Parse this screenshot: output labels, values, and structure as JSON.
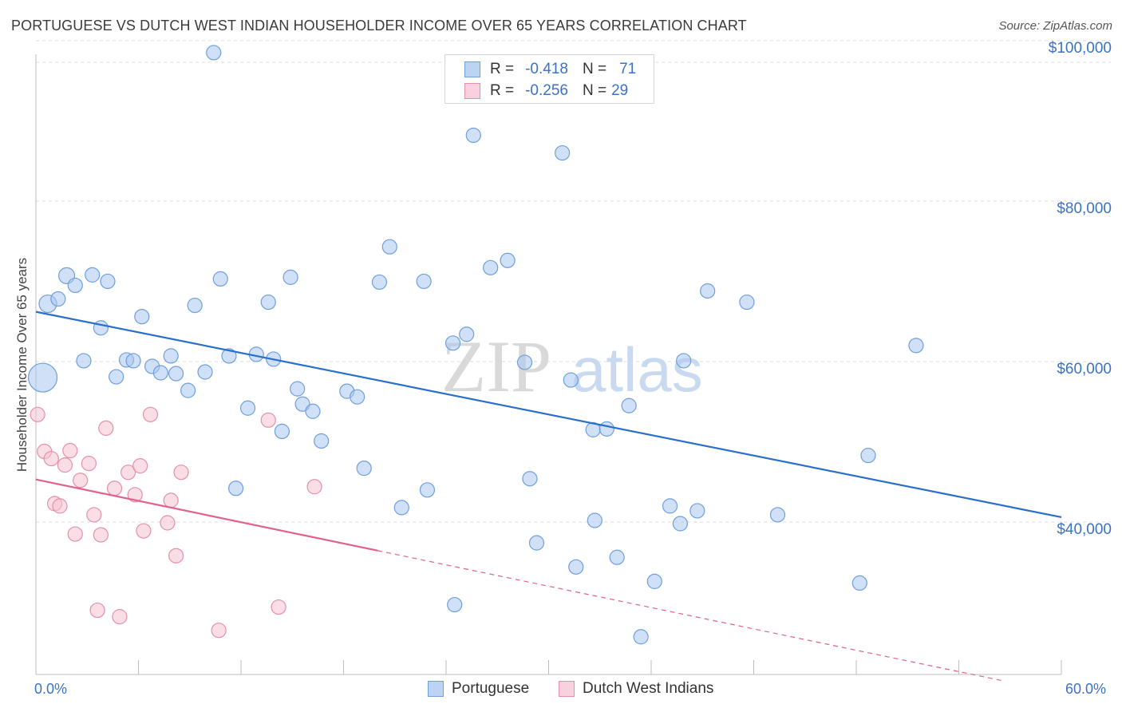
{
  "header": {
    "title": "PORTUGUESE VS DUTCH WEST INDIAN HOUSEHOLDER INCOME OVER 65 YEARS CORRELATION CHART",
    "source": "Source: ZipAtlas.com"
  },
  "watermark": {
    "zip": "ZIP",
    "atlas": "atlas"
  },
  "legend": {
    "portuguese": {
      "r_label": "R =",
      "r_value": "-0.418",
      "n_label": "N =",
      "n_value": "71"
    },
    "dutch": {
      "r_label": "R =",
      "r_value": "-0.256",
      "n_label": "N =",
      "n_value": "29"
    }
  },
  "colors": {
    "blue_fill": "#a9c6ef",
    "blue_stroke": "#6f9fdc",
    "blue_line": "#2a6fcb",
    "pink_fill": "#f6c3d2",
    "pink_stroke": "#e58fab",
    "pink_line": "#e0628c",
    "grid": "#dcdcdc",
    "axis_text": "#3a72c4"
  },
  "chart_data": {
    "type": "scatter",
    "title": "PORTUGUESE VS DUTCH WEST INDIAN HOUSEHOLDER INCOME OVER 65 YEARS CORRELATION CHART",
    "xlabel": "",
    "ylabel": "Householder Income Over 65 years",
    "xlim": [
      0,
      60
    ],
    "ylim": [
      21000,
      102000
    ],
    "x_tick_labels": [
      "0.0%",
      "60.0%"
    ],
    "y_ticks": [
      {
        "value": 40000,
        "label": "$40,000"
      },
      {
        "value": 60000,
        "label": "$60,000"
      },
      {
        "value": 80000,
        "label": "$80,000"
      },
      {
        "value": 100000,
        "label": "$100,000"
      }
    ],
    "series": [
      {
        "name": "Portuguese",
        "color": "#a9c6ef",
        "trend": {
          "x0": 0,
          "y0": 66200,
          "x1": 60,
          "y1": 40600,
          "solid_until": 60
        },
        "points": [
          [
            0.4,
            58000,
            18
          ],
          [
            0.7,
            67200,
            11
          ],
          [
            1.3,
            67800,
            9
          ],
          [
            1.8,
            70700,
            10
          ],
          [
            2.3,
            69500,
            9
          ],
          [
            2.8,
            60100,
            9
          ],
          [
            3.3,
            70800,
            9
          ],
          [
            3.8,
            64200,
            9
          ],
          [
            4.2,
            70000,
            9
          ],
          [
            4.7,
            58100,
            9
          ],
          [
            5.3,
            60200,
            9
          ],
          [
            5.7,
            60100,
            9
          ],
          [
            6.2,
            65600,
            9
          ],
          [
            6.8,
            59400,
            9
          ],
          [
            7.3,
            58600,
            9
          ],
          [
            7.9,
            60700,
            9
          ],
          [
            8.2,
            58500,
            9
          ],
          [
            8.9,
            56400,
            9
          ],
          [
            9.3,
            67000,
            9
          ],
          [
            9.9,
            58700,
            9
          ],
          [
            10.4,
            98500,
            9
          ],
          [
            10.8,
            70300,
            9
          ],
          [
            11.3,
            60700,
            9
          ],
          [
            11.7,
            44200,
            9
          ],
          [
            12.4,
            54200,
            9
          ],
          [
            12.9,
            60900,
            9
          ],
          [
            13.6,
            67400,
            9
          ],
          [
            13.9,
            60300,
            9
          ],
          [
            14.4,
            51300,
            9
          ],
          [
            14.9,
            70500,
            9
          ],
          [
            15.3,
            56600,
            9
          ],
          [
            15.6,
            54700,
            9
          ],
          [
            16.2,
            53800,
            9
          ],
          [
            16.7,
            50100,
            9
          ],
          [
            18.2,
            56300,
            9
          ],
          [
            18.8,
            55600,
            9
          ],
          [
            19.2,
            46700,
            9
          ],
          [
            20.1,
            69900,
            9
          ],
          [
            20.7,
            74300,
            9
          ],
          [
            21.4,
            41800,
            9
          ],
          [
            22.7,
            70000,
            9
          ],
          [
            22.9,
            44000,
            9
          ],
          [
            24.4,
            62300,
            9
          ],
          [
            24.5,
            29700,
            9
          ],
          [
            25.2,
            63400,
            9
          ],
          [
            25.6,
            88200,
            9
          ],
          [
            26.6,
            71700,
            9
          ],
          [
            27.6,
            72600,
            9
          ],
          [
            28.6,
            59900,
            9
          ],
          [
            28.9,
            45400,
            9
          ],
          [
            29.3,
            37400,
            9
          ],
          [
            30.8,
            86000,
            9
          ],
          [
            31.3,
            57700,
            9
          ],
          [
            31.6,
            34400,
            9
          ],
          [
            32.6,
            51500,
            9
          ],
          [
            32.7,
            40200,
            9
          ],
          [
            33.4,
            51600,
            9
          ],
          [
            34.0,
            35600,
            9
          ],
          [
            34.7,
            54500,
            9
          ],
          [
            35.4,
            25700,
            9
          ],
          [
            36.2,
            32600,
            9
          ],
          [
            37.1,
            42000,
            9
          ],
          [
            37.7,
            39800,
            9
          ],
          [
            37.9,
            60100,
            9
          ],
          [
            38.7,
            41400,
            9
          ],
          [
            39.3,
            68800,
            9
          ],
          [
            41.6,
            67400,
            9
          ],
          [
            43.4,
            40900,
            9
          ],
          [
            48.2,
            32400,
            9
          ],
          [
            48.7,
            48300,
            9
          ],
          [
            51.5,
            62000,
            9
          ]
        ]
      },
      {
        "name": "Dutch West Indians",
        "color": "#f6c3d2",
        "trend": {
          "x0": 0,
          "y0": 45300,
          "x1": 60,
          "y1": 18700,
          "solid_until": 20
        },
        "points": [
          [
            0.1,
            53400,
            9
          ],
          [
            0.5,
            48800,
            9
          ],
          [
            0.9,
            47900,
            9
          ],
          [
            1.1,
            42300,
            9
          ],
          [
            1.4,
            42000,
            9
          ],
          [
            1.7,
            47100,
            9
          ],
          [
            2.0,
            48900,
            9
          ],
          [
            2.3,
            38500,
            9
          ],
          [
            2.6,
            45200,
            9
          ],
          [
            3.1,
            47300,
            9
          ],
          [
            3.4,
            40900,
            9
          ],
          [
            3.6,
            29000,
            9
          ],
          [
            3.8,
            38400,
            9
          ],
          [
            4.1,
            51700,
            9
          ],
          [
            4.6,
            44200,
            9
          ],
          [
            4.9,
            28200,
            9
          ],
          [
            5.4,
            46200,
            9
          ],
          [
            5.8,
            43400,
            9
          ],
          [
            6.1,
            47000,
            9
          ],
          [
            6.3,
            38900,
            9
          ],
          [
            6.7,
            53400,
            9
          ],
          [
            7.7,
            39900,
            9
          ],
          [
            7.9,
            42700,
            9
          ],
          [
            8.2,
            35800,
            9
          ],
          [
            8.5,
            46200,
            9
          ],
          [
            10.7,
            26500,
            9
          ],
          [
            13.6,
            52700,
            9
          ],
          [
            14.2,
            29400,
            9
          ],
          [
            16.3,
            44400,
            9
          ]
        ]
      }
    ],
    "legend": [
      "Portuguese",
      "Dutch West Indians"
    ]
  }
}
